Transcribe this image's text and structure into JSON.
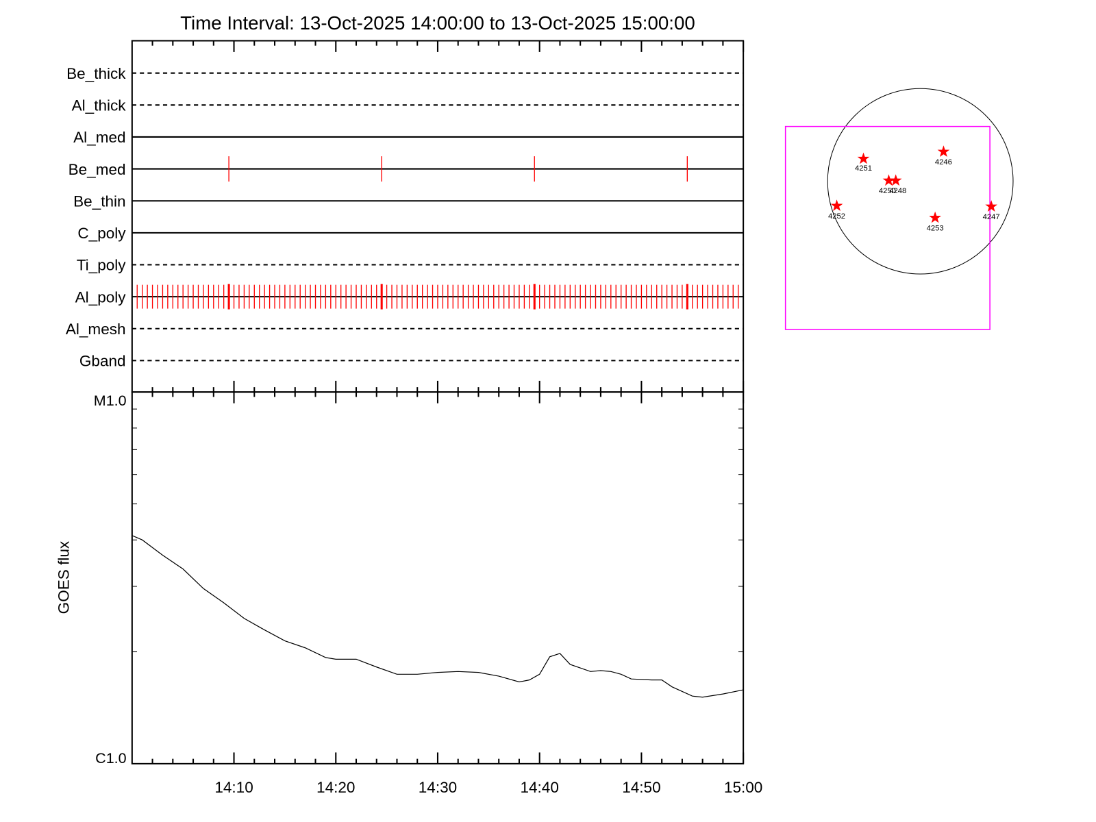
{
  "chart_data": {
    "type": "line",
    "title": "Time Interval: 13-Oct-2025 14:00:00 to 13-Oct-2025 15:00:00",
    "xlim": [
      "14:00",
      "15:00"
    ],
    "xticks": [
      "14:10",
      "14:20",
      "14:30",
      "14:40",
      "14:50",
      "15:00"
    ],
    "xminor_ticks": [
      "14:02",
      "14:04",
      "14:06",
      "14:08",
      "14:12",
      "14:14",
      "14:16",
      "14:18",
      "14:22",
      "14:24",
      "14:26",
      "14:28",
      "14:32",
      "14:34",
      "14:36",
      "14:38",
      "14:42",
      "14:44",
      "14:46",
      "14:48",
      "14:52",
      "14:54",
      "14:56",
      "14:58"
    ],
    "detectors": [
      {
        "name": "Be_thick",
        "style": "dashed"
      },
      {
        "name": "Al_thick",
        "style": "dashed"
      },
      {
        "name": "Al_med",
        "style": "solid"
      },
      {
        "name": "Be_med",
        "style": "solid",
        "color": "#ff0000",
        "markers": [
          "14:09:30",
          "14:24:30",
          "14:39:30",
          "14:54:30"
        ]
      },
      {
        "name": "Be_thin",
        "style": "solid"
      },
      {
        "name": "C_poly",
        "style": "solid"
      },
      {
        "name": "Ti_poly",
        "style": "dashed"
      },
      {
        "name": "Al_poly",
        "style": "solid",
        "color": "#ff0000",
        "markers": [
          "14:00:30",
          "14:01:00",
          "14:01:30",
          "14:02:00",
          "14:02:30",
          "14:03:00",
          "14:03:30",
          "14:04:00",
          "14:04:30",
          "14:05:00",
          "14:05:30",
          "14:06:00",
          "14:06:30",
          "14:07:00",
          "14:07:30",
          "14:08:00",
          "14:08:30",
          "14:09:00",
          "14:10:00",
          "14:10:30",
          "14:11:00",
          "14:11:30",
          "14:12:00",
          "14:12:30",
          "14:13:00",
          "14:13:30",
          "14:14:00",
          "14:14:30",
          "14:15:00",
          "14:15:30",
          "14:16:00",
          "14:16:30",
          "14:17:00",
          "14:17:30",
          "14:18:00",
          "14:18:30",
          "14:19:00",
          "14:19:30",
          "14:20:00",
          "14:20:30",
          "14:21:00",
          "14:21:30",
          "14:22:00",
          "14:22:30",
          "14:23:00",
          "14:23:30",
          "14:24:00",
          "14:25:00",
          "14:25:30",
          "14:26:00",
          "14:26:30",
          "14:27:00",
          "14:27:30",
          "14:28:00",
          "14:28:30",
          "14:29:00",
          "14:29:30",
          "14:30:00",
          "14:30:30",
          "14:31:00",
          "14:31:30",
          "14:32:00",
          "14:32:30",
          "14:33:00",
          "14:33:30",
          "14:34:00",
          "14:34:30",
          "14:35:00",
          "14:35:30",
          "14:36:00",
          "14:36:30",
          "14:37:00",
          "14:37:30",
          "14:38:00",
          "14:38:30",
          "14:39:00",
          "14:40:00",
          "14:40:30",
          "14:41:00",
          "14:41:30",
          "14:42:00",
          "14:42:30",
          "14:43:00",
          "14:43:30",
          "14:44:00",
          "14:44:30",
          "14:45:00",
          "14:45:30",
          "14:46:00",
          "14:46:30",
          "14:47:00",
          "14:47:30",
          "14:48:00",
          "14:48:30",
          "14:49:00",
          "14:49:30",
          "14:50:00",
          "14:50:30",
          "14:51:00",
          "14:51:30",
          "14:52:00",
          "14:52:30",
          "14:53:00",
          "14:53:30",
          "14:54:00",
          "14:55:00",
          "14:55:30",
          "14:56:00",
          "14:56:30",
          "14:57:00",
          "14:57:30",
          "14:58:00",
          "14:58:30",
          "14:59:00",
          "14:59:30"
        ],
        "major_markers": [
          "14:09:30",
          "14:24:30",
          "14:39:30",
          "14:54:30"
        ]
      },
      {
        "name": "Al_mesh",
        "style": "dashed"
      },
      {
        "name": "Gband",
        "style": "dashed"
      }
    ],
    "y_label": "GOES flux",
    "ylog": true,
    "ylim": [
      1e-06,
      1e-05
    ],
    "yticks": [
      {
        "value": 1e-06,
        "label": "C1.0"
      },
      {
        "value": 1e-05,
        "label": "M1.0"
      }
    ],
    "yminor_ticks": [
      2e-06,
      3e-06,
      4e-06,
      5e-06,
      6e-06,
      7e-06,
      8e-06,
      9e-06
    ],
    "x": [
      "14:00",
      "14:01",
      "14:03",
      "14:05",
      "14:07",
      "14:09",
      "14:11",
      "14:13",
      "14:15",
      "14:17",
      "14:19",
      "14:20",
      "14:22",
      "14:24",
      "14:26",
      "14:28",
      "14:30",
      "14:32",
      "14:34",
      "14:36",
      "14:38",
      "14:39",
      "14:40",
      "14:41",
      "14:42",
      "14:43",
      "14:45",
      "14:46",
      "14:47",
      "14:48",
      "14:49",
      "14:51",
      "14:52",
      "14:53",
      "14:55",
      "14:56",
      "14:58",
      "15:00"
    ],
    "color": "#000000",
    "values": [
      4.11e-06,
      4e-06,
      3.64e-06,
      3.34e-06,
      2.96e-06,
      2.71e-06,
      2.46e-06,
      2.29e-06,
      2.14e-06,
      2.05e-06,
      1.93e-06,
      1.91e-06,
      1.91e-06,
      1.82e-06,
      1.74e-06,
      1.74e-06,
      1.76e-06,
      1.77e-06,
      1.76e-06,
      1.72e-06,
      1.66e-06,
      1.68e-06,
      1.74e-06,
      1.94e-06,
      1.98e-06,
      1.85e-06,
      1.77e-06,
      1.78e-06,
      1.77e-06,
      1.74e-06,
      1.69e-06,
      1.68e-06,
      1.68e-06,
      1.61e-06,
      1.52e-06,
      1.51e-06,
      1.54e-06,
      1.58e-06
    ]
  },
  "map": {
    "regions": [
      "4251",
      "4246",
      "4250",
      "4248",
      "4252",
      "4253",
      "4247"
    ]
  }
}
